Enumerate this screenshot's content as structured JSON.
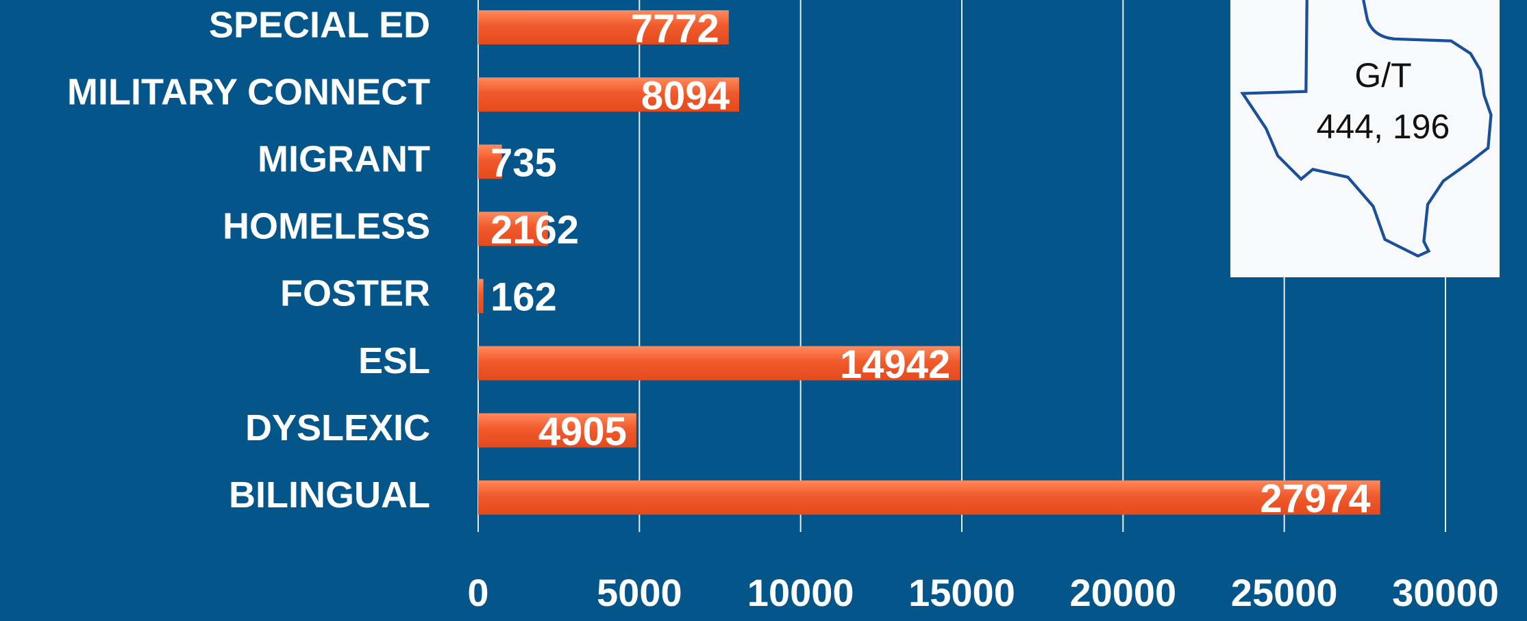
{
  "chart_data": {
    "type": "hbar",
    "categories": [
      "SPECIAL ED",
      "MILITARY CONNECT",
      "MIGRANT",
      "HOMELESS",
      "FOSTER",
      "ESL",
      "DYSLEXIC",
      "BILINGUAL"
    ],
    "values": [
      7772,
      8094,
      735,
      2162,
      162,
      14942,
      4905,
      27974
    ],
    "color": "#f05a2c",
    "xlim": [
      0,
      30000
    ],
    "xticks": [
      0,
      5000,
      10000,
      15000,
      20000,
      25000,
      30000
    ],
    "grid": true,
    "annotations": [
      "G/T",
      "444, 196"
    ]
  }
}
